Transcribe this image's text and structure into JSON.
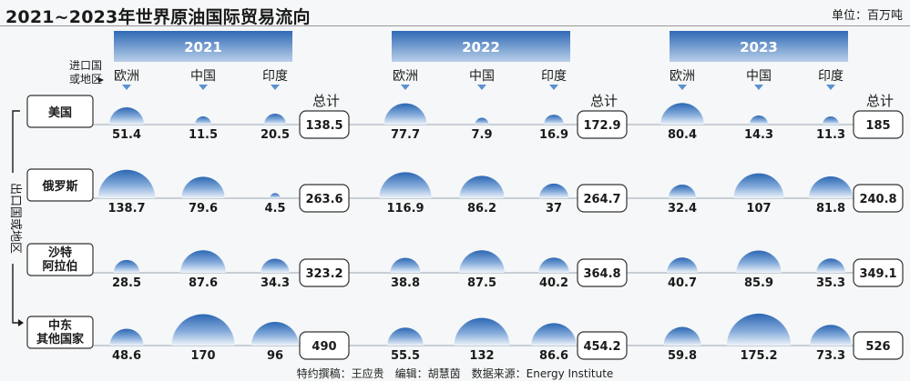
{
  "title": "2021~2023年世界原油国际贸易流向",
  "unit": "单位：百万吨",
  "source": "特约撰稿：王应贵　编辑：胡慧茵　数据来源：Energy Institute",
  "axis": {
    "import_label_line1": "进口国",
    "import_label_line2": "或地区",
    "export_label": "出口国或地区"
  },
  "total_label": "总计",
  "colors": {
    "year_header_top": "#2f6ab6",
    "year_header_bottom": "#b7cde8",
    "dome_top": "#2f6ab6",
    "dome_bottom": "#e4ecf5",
    "arrow": "#5b90cf"
  },
  "chart_data": {
    "type": "bubble-table",
    "title": "2021~2023年世界原油国际贸易流向",
    "unit": "百万吨",
    "years": [
      "2021",
      "2022",
      "2023"
    ],
    "importers": [
      "欧洲",
      "中国",
      "印度"
    ],
    "exporters": [
      {
        "name": [
          "美国"
        ],
        "values": [
          [
            51.4,
            11.5,
            20.5
          ],
          [
            77.7,
            7.9,
            16.9
          ],
          [
            80.4,
            14.3,
            11.3
          ]
        ],
        "totals": [
          "138.5",
          "172.9",
          "185"
        ]
      },
      {
        "name": [
          "俄罗斯"
        ],
        "values": [
          [
            138.7,
            79.6,
            4.5
          ],
          [
            116.9,
            86.2,
            37
          ],
          [
            32.4,
            107,
            81.8
          ]
        ],
        "totals": [
          "263.6",
          "264.7",
          "240.8"
        ]
      },
      {
        "name": [
          "沙特",
          "阿拉伯"
        ],
        "values": [
          [
            28.5,
            87.6,
            34.3
          ],
          [
            38.8,
            87.5,
            40.2
          ],
          [
            40.7,
            85.9,
            35.3
          ]
        ],
        "totals": [
          "323.2",
          "364.8",
          "349.1"
        ]
      },
      {
        "name": [
          "中东",
          "其他国家"
        ],
        "values": [
          [
            48.6,
            170,
            96
          ],
          [
            55.5,
            132,
            86.6
          ],
          [
            59.8,
            175.2,
            73.3
          ]
        ],
        "totals": [
          "490",
          "454.2",
          "526"
        ]
      }
    ]
  }
}
